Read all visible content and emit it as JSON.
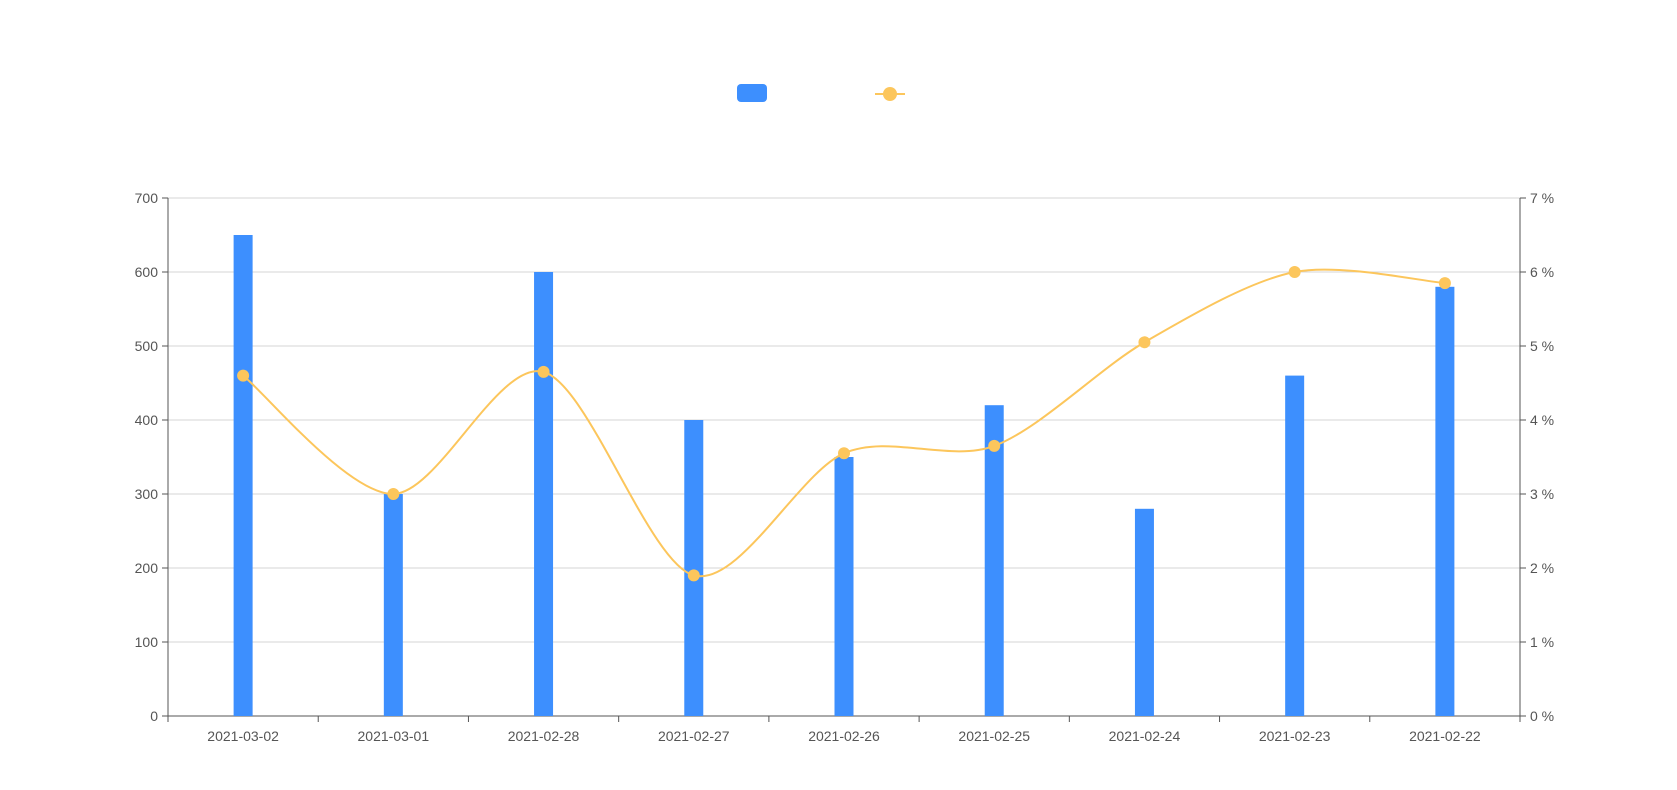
{
  "chart_data": {
    "type": "bar",
    "categories": [
      "2021-03-02",
      "2021-03-01",
      "2021-02-28",
      "2021-02-27",
      "2021-02-26",
      "2021-02-25",
      "2021-02-24",
      "2021-02-23",
      "2021-02-22"
    ],
    "series": [
      {
        "type": "bar",
        "axis": "left",
        "color": "#3d8ffe",
        "values": [
          650,
          300,
          600,
          400,
          350,
          420,
          280,
          460,
          580
        ]
      },
      {
        "type": "line",
        "axis": "right",
        "smooth": true,
        "color": "#fcc65c",
        "values": [
          4.6,
          3.0,
          4.65,
          1.9,
          3.55,
          3.65,
          5.05,
          6.0,
          5.85
        ]
      }
    ],
    "y_left": {
      "min": 0,
      "max": 700,
      "ticks": [
        "0",
        "100",
        "200",
        "300",
        "400",
        "500",
        "600",
        "700"
      ]
    },
    "y_right": {
      "min": 0,
      "max": 7,
      "ticks": [
        "0 %",
        "1 %",
        "2 %",
        "3 %",
        "4 %",
        "5 %",
        "6 %",
        "7 %"
      ]
    },
    "grid": true,
    "legend": {
      "position": "top-center",
      "labels": [
        "",
        ""
      ]
    },
    "title": "",
    "xlabel": "",
    "ylabel": "",
    "y2label": ""
  }
}
